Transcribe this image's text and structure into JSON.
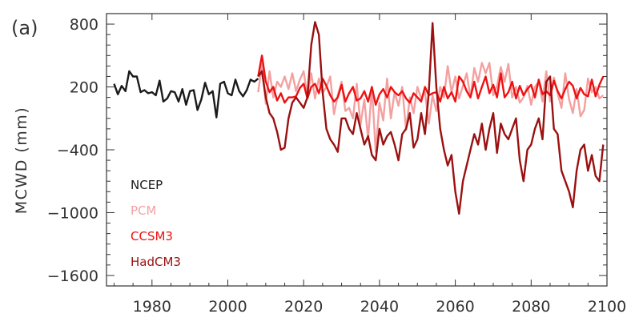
{
  "panel_label": "(a)",
  "chart_data": {
    "type": "line",
    "title": "",
    "xlabel": "",
    "ylabel": "MCWD (mm)",
    "xlim": [
      1968,
      2100
    ],
    "ylim": [
      -1700,
      900
    ],
    "x_ticks": [
      1980,
      2000,
      2020,
      2040,
      2060,
      2080,
      2100
    ],
    "y_ticks": [
      800,
      200,
      -400,
      -1000,
      -1600
    ],
    "grid": false,
    "legend_position": "lower-left",
    "series": [
      {
        "name": "NCEP",
        "color": "#1a1a1a",
        "x": [
          1970,
          1971,
          1972,
          1973,
          1974,
          1975,
          1976,
          1977,
          1978,
          1979,
          1980,
          1981,
          1982,
          1983,
          1984,
          1985,
          1986,
          1987,
          1988,
          1989,
          1990,
          1991,
          1992,
          1993,
          1994,
          1995,
          1996,
          1997,
          1998,
          1999,
          2000,
          2001,
          2002,
          2003,
          2004,
          2005,
          2006,
          2007,
          2008
        ],
        "y": [
          230,
          130,
          210,
          160,
          350,
          300,
          300,
          150,
          170,
          140,
          150,
          120,
          260,
          60,
          90,
          160,
          150,
          60,
          180,
          30,
          160,
          170,
          -20,
          80,
          240,
          130,
          160,
          -90,
          230,
          250,
          140,
          120,
          270,
          160,
          110,
          170,
          270,
          250,
          280
        ]
      },
      {
        "name": "PCM",
        "color": "#f4a0a0",
        "x": [
          2008,
          2009,
          2010,
          2011,
          2012,
          2013,
          2014,
          2015,
          2016,
          2017,
          2018,
          2019,
          2020,
          2021,
          2022,
          2023,
          2024,
          2025,
          2026,
          2027,
          2028,
          2029,
          2030,
          2031,
          2032,
          2033,
          2034,
          2035,
          2036,
          2037,
          2038,
          2039,
          2040,
          2041,
          2042,
          2043,
          2044,
          2045,
          2046,
          2047,
          2048,
          2049,
          2050,
          2051,
          2052,
          2053,
          2054,
          2055,
          2056,
          2057,
          2058,
          2059,
          2060,
          2061,
          2062,
          2063,
          2064,
          2065,
          2066,
          2067,
          2068,
          2069,
          2070,
          2071,
          2072,
          2073,
          2074,
          2075,
          2076,
          2077,
          2078,
          2079,
          2080,
          2081,
          2082,
          2083,
          2084,
          2085,
          2086,
          2087,
          2088,
          2089,
          2090,
          2091,
          2092,
          2093,
          2094,
          2095,
          2096,
          2097,
          2098,
          2099
        ],
        "y": [
          150,
          420,
          40,
          350,
          100,
          250,
          200,
          300,
          180,
          330,
          160,
          270,
          350,
          110,
          330,
          90,
          280,
          140,
          200,
          300,
          -60,
          120,
          250,
          -30,
          0,
          -100,
          230,
          -160,
          80,
          -300,
          200,
          -420,
          50,
          -120,
          280,
          -100,
          150,
          20,
          200,
          -210,
          100,
          -50,
          200,
          90,
          150,
          -150,
          120,
          -30,
          200,
          100,
          400,
          150,
          300,
          90,
          210,
          330,
          100,
          380,
          250,
          430,
          330,
          430,
          120,
          210,
          390,
          250,
          420,
          100,
          200,
          50,
          100,
          210,
          30,
          200,
          250,
          60,
          350,
          60,
          290,
          140,
          0,
          330,
          80,
          -50,
          180,
          -80,
          -20,
          280,
          150,
          200,
          90,
          120
        ]
      },
      {
        "name": "CCSM3",
        "color": "#ee1111",
        "x": [
          2008,
          2009,
          2010,
          2011,
          2012,
          2013,
          2014,
          2015,
          2016,
          2017,
          2018,
          2019,
          2020,
          2021,
          2022,
          2023,
          2024,
          2025,
          2026,
          2027,
          2028,
          2029,
          2030,
          2031,
          2032,
          2033,
          2034,
          2035,
          2036,
          2037,
          2038,
          2039,
          2040,
          2041,
          2042,
          2043,
          2044,
          2045,
          2046,
          2047,
          2048,
          2049,
          2050,
          2051,
          2052,
          2053,
          2054,
          2055,
          2056,
          2057,
          2058,
          2059,
          2060,
          2061,
          2062,
          2063,
          2064,
          2065,
          2066,
          2067,
          2068,
          2069,
          2070,
          2071,
          2072,
          2073,
          2074,
          2075,
          2076,
          2077,
          2078,
          2079,
          2080,
          2081,
          2082,
          2083,
          2084,
          2085,
          2086,
          2087,
          2088,
          2089,
          2090,
          2091,
          2092,
          2093,
          2094,
          2095,
          2096,
          2097,
          2098,
          2099
        ],
        "y": [
          300,
          500,
          250,
          150,
          200,
          70,
          140,
          50,
          100,
          100,
          110,
          190,
          230,
          90,
          200,
          230,
          140,
          280,
          210,
          120,
          60,
          100,
          220,
          60,
          140,
          200,
          70,
          90,
          160,
          60,
          200,
          30,
          130,
          180,
          100,
          200,
          150,
          120,
          160,
          90,
          50,
          140,
          100,
          60,
          200,
          120,
          140,
          150,
          60,
          200,
          90,
          150,
          60,
          300,
          250,
          160,
          100,
          250,
          90,
          200,
          300,
          140,
          220,
          100,
          330,
          100,
          150,
          250,
          90,
          210,
          120,
          180,
          220,
          100,
          270,
          130,
          160,
          120,
          260,
          160,
          90,
          180,
          250,
          210,
          90,
          190,
          130,
          110,
          270,
          110,
          220,
          300
        ]
      },
      {
        "name": "HadCM3",
        "color": "#9b1010",
        "x": [
          2008,
          2009,
          2010,
          2011,
          2012,
          2013,
          2014,
          2015,
          2016,
          2017,
          2018,
          2019,
          2020,
          2021,
          2022,
          2023,
          2024,
          2025,
          2026,
          2027,
          2028,
          2029,
          2030,
          2031,
          2032,
          2033,
          2034,
          2035,
          2036,
          2037,
          2038,
          2039,
          2040,
          2041,
          2042,
          2043,
          2044,
          2045,
          2046,
          2047,
          2048,
          2049,
          2050,
          2051,
          2052,
          2053,
          2054,
          2055,
          2056,
          2057,
          2058,
          2059,
          2060,
          2061,
          2062,
          2063,
          2064,
          2065,
          2066,
          2067,
          2068,
          2069,
          2070,
          2071,
          2072,
          2073,
          2074,
          2075,
          2076,
          2077,
          2078,
          2079,
          2080,
          2081,
          2082,
          2083,
          2084,
          2085,
          2086,
          2087,
          2088,
          2089,
          2090,
          2091,
          2092,
          2093,
          2094,
          2095,
          2096,
          2097,
          2098,
          2099
        ],
        "y": [
          300,
          350,
          100,
          -50,
          -100,
          -230,
          -400,
          -380,
          -100,
          50,
          100,
          50,
          0,
          100,
          600,
          820,
          700,
          150,
          -200,
          -300,
          -350,
          -420,
          -100,
          -100,
          -200,
          -250,
          -50,
          -200,
          -350,
          -270,
          -450,
          -500,
          -200,
          -350,
          -270,
          -230,
          -350,
          -500,
          -250,
          -200,
          -50,
          -380,
          -300,
          -50,
          -250,
          150,
          810,
          200,
          -200,
          -400,
          -550,
          -450,
          -800,
          -1010,
          -700,
          -550,
          -400,
          -250,
          -350,
          -150,
          -400,
          -200,
          -50,
          -430,
          -150,
          -250,
          -300,
          -200,
          -100,
          -500,
          -700,
          -400,
          -350,
          -200,
          -100,
          -300,
          250,
          300,
          -200,
          -250,
          -600,
          -700,
          -800,
          -950,
          -600,
          -400,
          -350,
          -600,
          -450,
          -650,
          -700,
          -350
        ]
      }
    ]
  }
}
